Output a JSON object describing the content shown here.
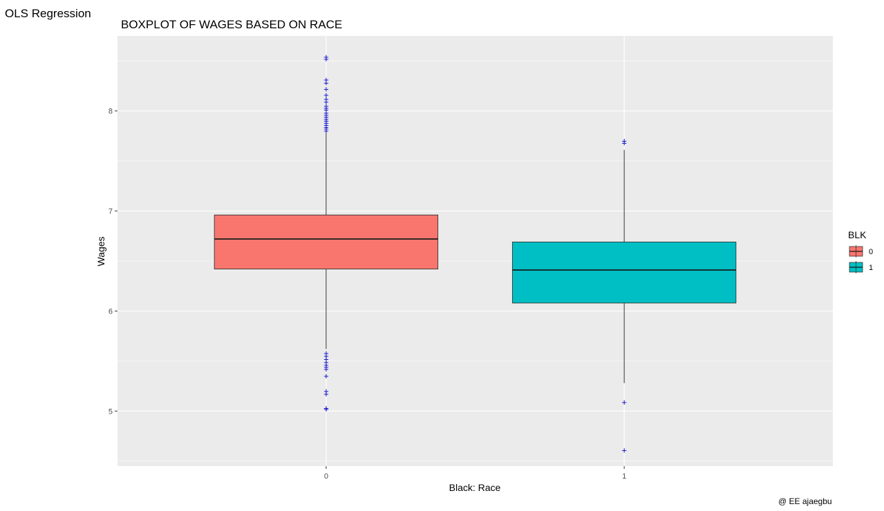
{
  "header": {
    "title": "OLS Regression"
  },
  "caption": "@ EE ajaegbu",
  "chart_data": {
    "type": "boxplot",
    "title": "BOXPLOT OF WAGES BASED ON RACE",
    "xlabel": "Black: Race",
    "ylabel": "Wages",
    "categories": [
      "0",
      "1"
    ],
    "ylim": [
      4.45,
      8.75
    ],
    "yticks": [
      5,
      6,
      7,
      8
    ],
    "grid": true,
    "background": "#ebebeb",
    "boxes": [
      {
        "category": "0",
        "fill": "#F8766D",
        "q1": 6.42,
        "median": 6.72,
        "q3": 6.96,
        "whisker_low": 5.62,
        "whisker_high": 7.78,
        "outliers": [
          8.54,
          8.52,
          8.31,
          8.28,
          8.22,
          8.16,
          8.12,
          8.09,
          8.05,
          8.03,
          8.01,
          7.98,
          7.96,
          7.94,
          7.92,
          7.9,
          7.88,
          7.86,
          7.84,
          7.82,
          7.8,
          5.58,
          5.55,
          5.52,
          5.49,
          5.46,
          5.44,
          5.42,
          5.35,
          5.2,
          5.17,
          5.03,
          5.02
        ]
      },
      {
        "category": "1",
        "fill": "#00BFC4",
        "q1": 6.08,
        "median": 6.41,
        "q3": 6.69,
        "whisker_low": 5.28,
        "whisker_high": 7.61,
        "outliers": [
          7.7,
          7.68,
          5.09,
          4.61
        ]
      }
    ],
    "outlier_color": "#0000cd",
    "outlier_shape": "+",
    "legend": {
      "title": "BLK",
      "position": "right",
      "entries": [
        "0",
        "1"
      ]
    }
  }
}
